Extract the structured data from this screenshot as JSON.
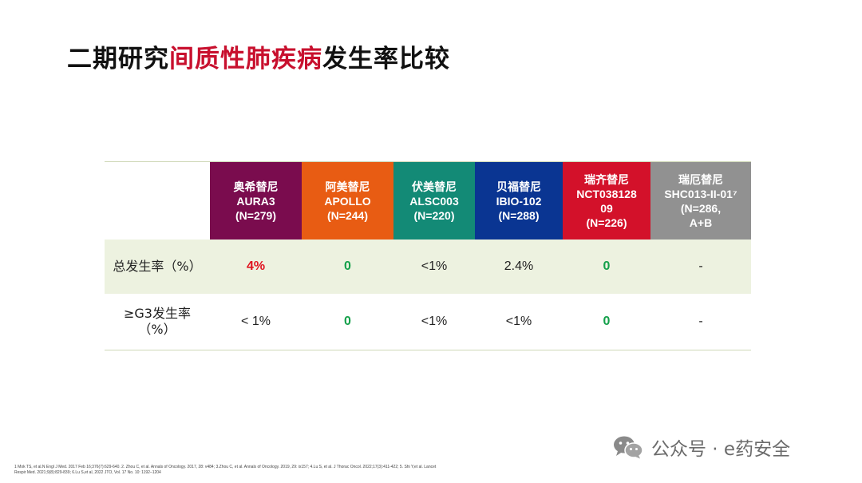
{
  "title": {
    "part1": "二期研究",
    "highlight": "间质性肺疾病",
    "part2": "发生率比较"
  },
  "table": {
    "columns": [
      {
        "lines": [
          "奥希替尼",
          "AURA3",
          "(N=279)"
        ],
        "color": "#7a0c4e"
      },
      {
        "lines": [
          "阿美替尼",
          "APOLLO",
          "(N=244)"
        ],
        "color": "#e85c13"
      },
      {
        "lines": [
          "伏美替尼",
          "ALSC003",
          "(N=220)"
        ],
        "color": "#138a76"
      },
      {
        "lines": [
          "贝福替尼",
          "IBIO-102",
          "(N=288)"
        ],
        "color": "#0a3592"
      },
      {
        "lines": [
          "瑞齐替尼",
          "NCT038128",
          "09",
          "(N=226)"
        ],
        "color": "#d3112a"
      },
      {
        "lines": [
          "瑞厄替尼",
          "SHC013-II-01⁷",
          "(N=286,",
          "A+B"
        ],
        "color": "#919191"
      }
    ],
    "rows": [
      {
        "label": [
          "总发生率（%）"
        ],
        "values": [
          "4%",
          "0",
          "<1%",
          "2.4%",
          "0",
          "-"
        ],
        "styles": [
          "red",
          "green",
          "",
          "",
          "green",
          ""
        ]
      },
      {
        "label": [
          "≥G3发生率",
          "（%）"
        ],
        "values": [
          "< 1%",
          "0",
          "<1%",
          "<1%",
          "0",
          "-"
        ],
        "styles": [
          "",
          "green",
          "",
          "",
          "green",
          ""
        ]
      }
    ]
  },
  "references": [
    "1 Mok TS, et al.N Engl J Med. 2017 Feb 16;376(7):629-640. 2. Zhou C, et al. Annals of Oncology. 2017, 28: v484; 3.Zhou C, et al.  Annals of Oncology. 2019, 29: ix157; 4.Lu S, et al. J Thorac Oncol. 2022;17(3):411-422; 5. Shi Y,et al. Lancet",
    "Respir Med. 2021;9(8):829-839;  6.Lu S,et al, 2022 JTO, Vol. 17 No. 10: 1192–1204"
  ],
  "watermark": {
    "icon": "wechat-icon",
    "text": "公众号 · e药安全"
  }
}
